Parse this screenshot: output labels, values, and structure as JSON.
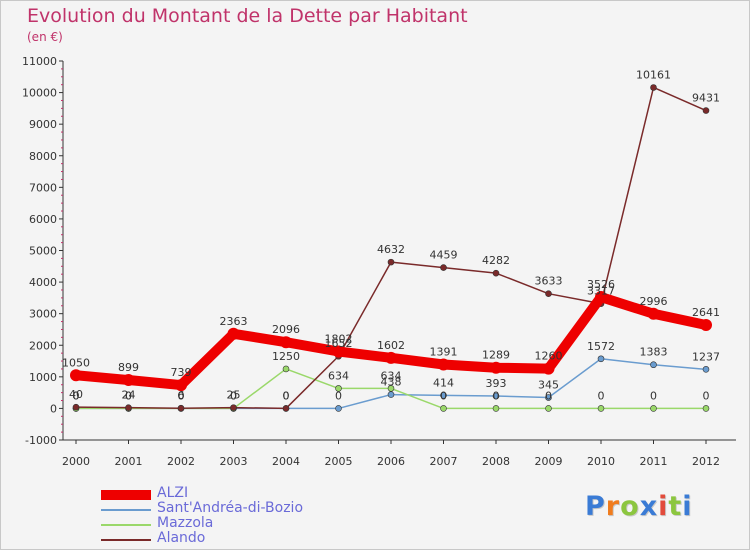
{
  "title": "Evolution du Montant de la Dette par Habitant",
  "subtitle": "(en €)",
  "brand": {
    "text": "Proxiti",
    "letter_colors": [
      "#3a7bd5",
      "#f07c1e",
      "#8cc63f",
      "#3a7bd5",
      "#e24b3b",
      "#8cc63f",
      "#3a7bd5"
    ]
  },
  "chart_data": {
    "type": "line",
    "title": "Evolution du Montant de la Dette par Habitant",
    "ylabel": "(en €)",
    "x": [
      "2000",
      "2001",
      "2002",
      "2003",
      "2004",
      "2005",
      "2006",
      "2007",
      "2008",
      "2009",
      "2010",
      "2011",
      "2012"
    ],
    "ylim": [
      -1000,
      11000
    ],
    "yticks": [
      -1000,
      0,
      1000,
      2000,
      3000,
      4000,
      5000,
      6000,
      7000,
      8000,
      9000,
      10000,
      11000
    ],
    "grid": false,
    "legend_position": "bottom-left",
    "series": [
      {
        "name": "ALZI",
        "color": "#ee0000",
        "values": [
          1050,
          899,
          739,
          2363,
          2096,
          1802,
          1602,
          1391,
          1289,
          1260,
          3526,
          2996,
          2641
        ]
      },
      {
        "name": "Sant'Andréa-di-Bozio",
        "color": "#6a9ccf",
        "values": [
          0,
          0,
          0,
          0,
          0,
          0,
          438,
          414,
          393,
          345,
          1572,
          1383,
          1237
        ]
      },
      {
        "name": "Mazzola",
        "color": "#9ad86a",
        "values": [
          0,
          0,
          0,
          0,
          1250,
          634,
          634,
          0,
          0,
          0,
          0,
          0,
          0
        ]
      },
      {
        "name": "Alando",
        "color": "#7a2a2a",
        "values": [
          40,
          24,
          6,
          25,
          0,
          1652,
          4632,
          4459,
          4282,
          3633,
          3317,
          10161,
          9431
        ]
      }
    ]
  }
}
